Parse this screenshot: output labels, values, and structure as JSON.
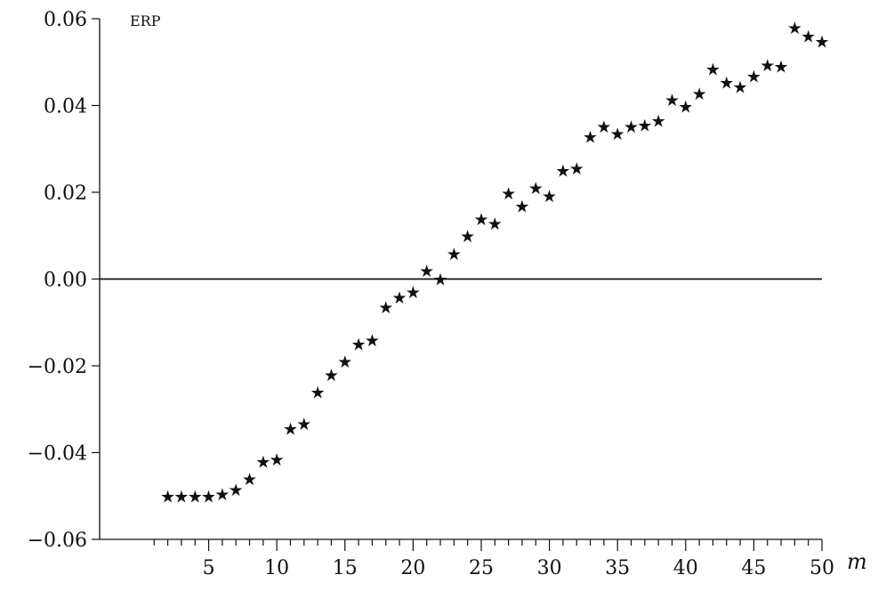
{
  "chart_data": {
    "type": "scatter",
    "series_label": "ERP",
    "xlabel": "m",
    "ylabel": "",
    "marker": "★",
    "xlim": [
      -3,
      50
    ],
    "ylim": [
      -0.06,
      0.06
    ],
    "xticks": [
      {
        "value": 5,
        "label": "5"
      },
      {
        "value": 10,
        "label": "10"
      },
      {
        "value": 15,
        "label": "15"
      },
      {
        "value": 20,
        "label": "20"
      },
      {
        "value": 25,
        "label": "25"
      },
      {
        "value": 30,
        "label": "30"
      },
      {
        "value": 35,
        "label": "35"
      },
      {
        "value": 40,
        "label": "40"
      },
      {
        "value": 45,
        "label": "45"
      },
      {
        "value": 50,
        "label": "50"
      }
    ],
    "minor_xticks": [
      1,
      2,
      3,
      4,
      6,
      7,
      8,
      9,
      11,
      12,
      13,
      14,
      16,
      17,
      18,
      19,
      21,
      22,
      23,
      24,
      26,
      27,
      28,
      29,
      31,
      32,
      33,
      34,
      36,
      37,
      38,
      39,
      41,
      42,
      43,
      44,
      46,
      47,
      48,
      49
    ],
    "yticks": [
      {
        "value": 0.06,
        "label": "0.06"
      },
      {
        "value": 0.04,
        "label": "0.04"
      },
      {
        "value": 0.02,
        "label": "0.02"
      },
      {
        "value": 0.0,
        "label": "0.00"
      },
      {
        "value": -0.02,
        "label": "−0.02"
      },
      {
        "value": -0.04,
        "label": "−0.04"
      },
      {
        "value": -0.06,
        "label": "−0.06"
      }
    ],
    "reference_line_y": 0,
    "x": [
      2,
      3,
      4,
      5,
      6,
      7,
      8,
      9,
      10,
      11,
      12,
      13,
      14,
      15,
      16,
      17,
      18,
      19,
      20,
      21,
      22,
      23,
      24,
      25,
      26,
      27,
      28,
      29,
      30,
      31,
      32,
      33,
      34,
      35,
      36,
      37,
      38,
      39,
      40,
      41,
      42,
      43,
      44,
      45,
      46,
      47,
      48,
      49,
      50
    ],
    "y": [
      -0.05,
      -0.05,
      -0.05,
      -0.05,
      -0.0495,
      -0.0485,
      -0.046,
      -0.042,
      -0.0415,
      -0.0345,
      -0.0333,
      -0.026,
      -0.022,
      -0.019,
      -0.015,
      -0.014,
      -0.0065,
      -0.0042,
      -0.003,
      0.002,
      0.0,
      0.0058,
      0.01,
      0.0138,
      0.0128,
      0.0198,
      0.0168,
      0.021,
      0.0192,
      0.025,
      0.0255,
      0.0328,
      0.0352,
      0.0335,
      0.0352,
      0.0355,
      0.0365,
      0.0413,
      0.0398,
      0.0428,
      0.0484,
      0.0453,
      0.0443,
      0.0468,
      0.0493,
      0.049,
      0.058,
      0.056,
      0.0548
    ]
  }
}
